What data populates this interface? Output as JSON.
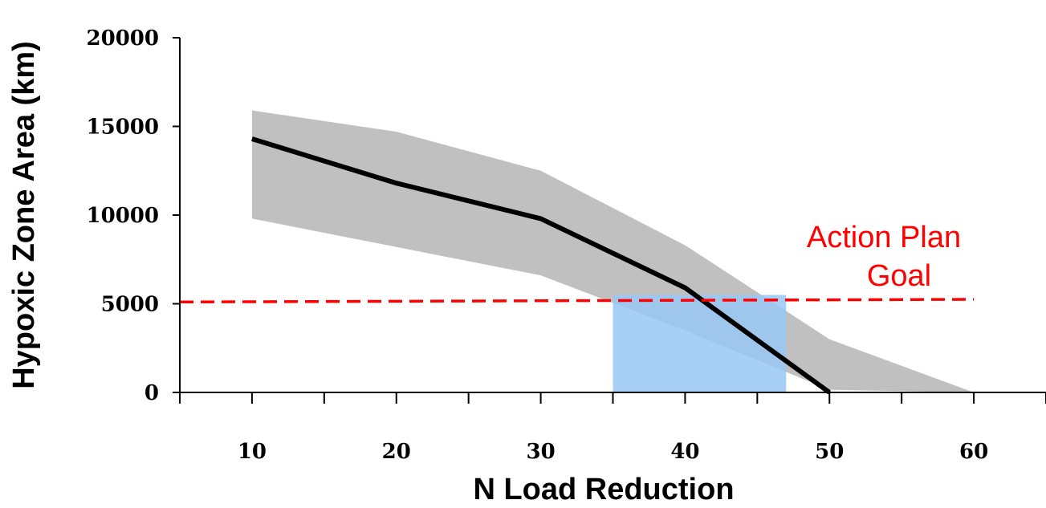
{
  "chart_data": {
    "type": "line",
    "xlabel": "N Load Reduction",
    "ylabel": "Hypoxic Zone Area (km)",
    "xlim": [
      5,
      65
    ],
    "ylim": [
      0,
      20000
    ],
    "x_ticks": [
      10,
      20,
      30,
      40,
      50,
      60
    ],
    "y_ticks": [
      0,
      5000,
      10000,
      15000,
      20000
    ],
    "grid": false,
    "series": [
      {
        "type": "line",
        "x": [
          10,
          20,
          30,
          40,
          50
        ],
        "y": [
          14300,
          11800,
          9800,
          5900,
          0
        ],
        "color": "#000000"
      },
      {
        "type": "band",
        "x": [
          10,
          20,
          30,
          40,
          50,
          60
        ],
        "upper": [
          15900,
          14700,
          12500,
          8300,
          3000,
          0
        ],
        "lower": [
          9800,
          8200,
          6600,
          3500,
          150,
          0
        ],
        "color": "#c0c0c0"
      }
    ],
    "reference_line": {
      "y_start": 5100,
      "y_end": 5250,
      "x_start": 5,
      "x_end": 60,
      "style": "dashed",
      "color": "#ff0000"
    },
    "highlight_region": {
      "x_from": 35,
      "x_to": 47,
      "y_from": 0,
      "y_to": 5500,
      "color": "#99c8f5"
    },
    "annotation": {
      "lines": [
        "Action Plan",
        "Goal"
      ],
      "color": "#ff0000"
    }
  }
}
